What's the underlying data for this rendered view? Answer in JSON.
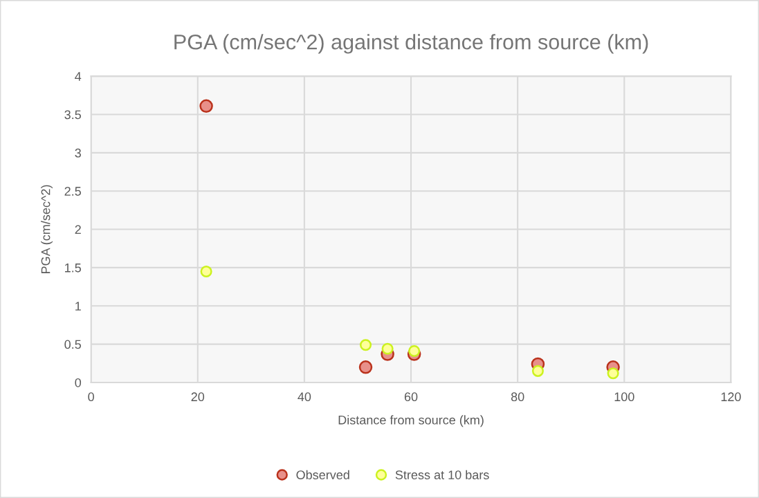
{
  "chart_data": {
    "type": "scatter",
    "title": "PGA (cm/sec^2) against distance from source (km)",
    "xlabel": "Distance from source (km)",
    "ylabel": "PGA (cm/sec^2)",
    "x": [
      21.6,
      51.5,
      55.6,
      60.6,
      83.8,
      97.9
    ],
    "series": [
      {
        "name": "Observed",
        "color": "#e8908a",
        "values": [
          3.61,
          0.2,
          0.37,
          0.37,
          0.24,
          0.2
        ]
      },
      {
        "name": "Stress at 10 bars",
        "color": "#ffff99",
        "values": [
          1.45,
          0.49,
          0.44,
          0.41,
          0.15,
          0.12
        ]
      }
    ],
    "xlim": [
      0,
      120
    ],
    "xticks": [
      0,
      20,
      40,
      60,
      80,
      100,
      120
    ],
    "ylim": [
      0,
      4
    ],
    "yticks": [
      0,
      0.5,
      1,
      1.5,
      2,
      2.5,
      3,
      3.5,
      4
    ],
    "grid": true,
    "legend": "bottom",
    "marker": "circle"
  }
}
